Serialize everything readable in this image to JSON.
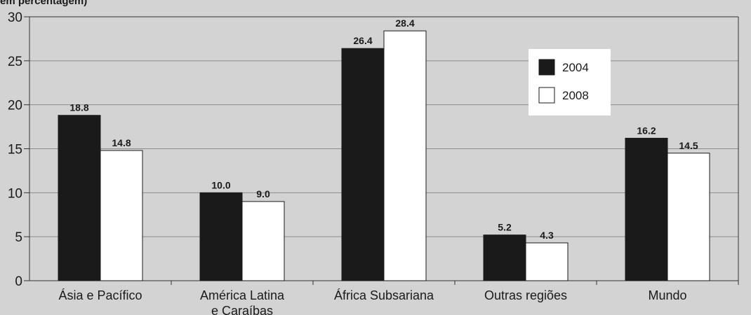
{
  "chart_data": {
    "type": "bar",
    "title": "em percentagem)",
    "categories": [
      "Ásia e Pacífico",
      "América Latina\ne Caraíbas",
      "África Subsariana",
      "Outras regiões",
      "Mundo"
    ],
    "series": [
      {
        "name": "2004",
        "values": [
          18.8,
          10.0,
          26.4,
          5.2,
          16.2
        ],
        "color": "#1a1a1a"
      },
      {
        "name": "2008",
        "values": [
          14.8,
          9.0,
          28.4,
          4.3,
          14.5
        ],
        "color": "#ffffff"
      }
    ],
    "data_labels": [
      [
        "18.8",
        "10.0",
        "26.4",
        "5.2",
        "16.2"
      ],
      [
        "14.8",
        "9.0",
        "28.4",
        "4.3",
        "14.5"
      ]
    ],
    "ylim": [
      0,
      30
    ],
    "yticks": [
      0,
      5,
      10,
      15,
      20,
      25,
      30
    ],
    "grid": true,
    "legend_position": "top-right"
  },
  "colors": {
    "background": "#d3d3d3",
    "grid": "#8c8c8c",
    "bar_dark": "#1a1a1a",
    "bar_light": "#ffffff"
  }
}
